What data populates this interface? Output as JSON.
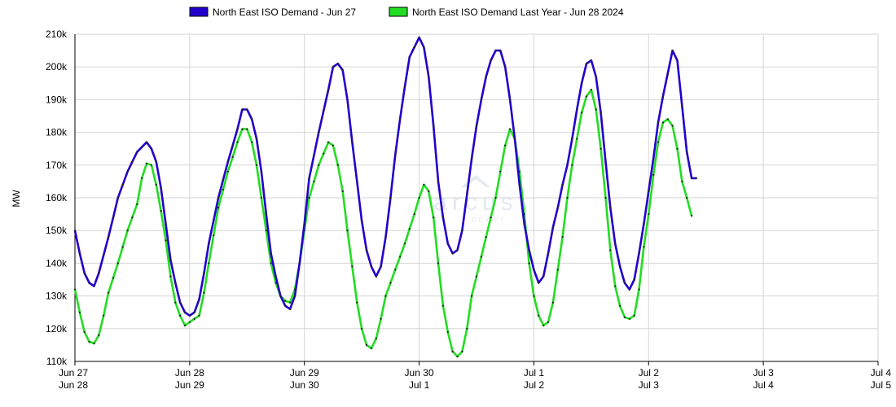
{
  "chart_data": {
    "type": "line",
    "ylabel": "MW",
    "ylim": [
      110000,
      210000
    ],
    "yticks": [
      {
        "value": 110000,
        "label": "110k"
      },
      {
        "value": 120000,
        "label": "120k"
      },
      {
        "value": 130000,
        "label": "130k"
      },
      {
        "value": 140000,
        "label": "140k"
      },
      {
        "value": 150000,
        "label": "150k"
      },
      {
        "value": 160000,
        "label": "160k"
      },
      {
        "value": 170000,
        "label": "170k"
      },
      {
        "value": 180000,
        "label": "180k"
      },
      {
        "value": 190000,
        "label": "190k"
      },
      {
        "value": 200000,
        "label": "200k"
      },
      {
        "value": 210000,
        "label": "210k"
      }
    ],
    "xlim": [
      0,
      168
    ],
    "xticks": [
      {
        "x": 0,
        "line1": "Jun 27",
        "line2": "Jun 28"
      },
      {
        "x": 24,
        "line1": "Jun 28",
        "line2": "Jun 29"
      },
      {
        "x": 48,
        "line1": "Jun 29",
        "line2": "Jun 30"
      },
      {
        "x": 72,
        "line1": "Jun 30",
        "line2": "Jul 1"
      },
      {
        "x": 96,
        "line1": "Jul 1",
        "line2": "Jul 2"
      },
      {
        "x": 120,
        "line1": "Jul 2",
        "line2": "Jul 3"
      },
      {
        "x": 144,
        "line1": "Jul 3",
        "line2": "Jul 4"
      },
      {
        "x": 168,
        "line1": "Jul 4",
        "line2": "Jul 5"
      }
    ],
    "grid": true,
    "legend_position": "top",
    "series": [
      {
        "name": "North East ISO Demand - Jun 27",
        "color": "#2200cc",
        "anchors": [
          [
            0,
            150000
          ],
          [
            1,
            143000
          ],
          [
            2,
            137000
          ],
          [
            3,
            134000
          ],
          [
            4,
            133000
          ],
          [
            5,
            137000
          ],
          [
            7,
            148000
          ],
          [
            9,
            160000
          ],
          [
            11,
            168000
          ],
          [
            13,
            174000
          ],
          [
            15,
            177000
          ],
          [
            16,
            175000
          ],
          [
            17,
            171000
          ],
          [
            18,
            163000
          ],
          [
            19,
            152000
          ],
          [
            20,
            141000
          ],
          [
            21,
            134000
          ],
          [
            22,
            128000
          ],
          [
            23,
            125000
          ],
          [
            24,
            124000
          ],
          [
            25,
            125000
          ],
          [
            26,
            129000
          ],
          [
            27,
            137000
          ],
          [
            28,
            146000
          ],
          [
            30,
            160000
          ],
          [
            32,
            171000
          ],
          [
            34,
            181000
          ],
          [
            35,
            187000
          ],
          [
            36,
            187000
          ],
          [
            37,
            184000
          ],
          [
            38,
            178000
          ],
          [
            39,
            168000
          ],
          [
            40,
            155000
          ],
          [
            41,
            143000
          ],
          [
            42,
            136000
          ],
          [
            43,
            130000
          ],
          [
            44,
            127000
          ],
          [
            45,
            126000
          ],
          [
            46,
            130000
          ],
          [
            47,
            140000
          ],
          [
            48,
            152000
          ],
          [
            49,
            166000
          ],
          [
            51,
            180000
          ],
          [
            53,
            193000
          ],
          [
            54,
            200000
          ],
          [
            55,
            201000
          ],
          [
            56,
            199000
          ],
          [
            57,
            190000
          ],
          [
            58,
            177000
          ],
          [
            59,
            165000
          ],
          [
            60,
            153000
          ],
          [
            61,
            144000
          ],
          [
            62,
            139000
          ],
          [
            63,
            136000
          ],
          [
            64,
            139000
          ],
          [
            65,
            148000
          ],
          [
            66,
            160000
          ],
          [
            67,
            173000
          ],
          [
            68,
            184000
          ],
          [
            69,
            194000
          ],
          [
            70,
            203000
          ],
          [
            71,
            206000
          ],
          [
            72,
            209000
          ],
          [
            73,
            206000
          ],
          [
            74,
            197000
          ],
          [
            75,
            182000
          ],
          [
            76,
            165000
          ],
          [
            77,
            154000
          ],
          [
            78,
            146000
          ],
          [
            79,
            143000
          ],
          [
            80,
            144000
          ],
          [
            81,
            150000
          ],
          [
            82,
            161000
          ],
          [
            83,
            172000
          ],
          [
            84,
            182000
          ],
          [
            85,
            190000
          ],
          [
            86,
            197000
          ],
          [
            87,
            202000
          ],
          [
            88,
            205000
          ],
          [
            89,
            205000
          ],
          [
            90,
            200000
          ],
          [
            91,
            190000
          ],
          [
            92,
            178000
          ],
          [
            93,
            164000
          ],
          [
            94,
            152000
          ],
          [
            95,
            144000
          ],
          [
            96,
            138000
          ],
          [
            97,
            134000
          ],
          [
            98,
            136000
          ],
          [
            99,
            143000
          ],
          [
            100,
            151000
          ],
          [
            101,
            157000
          ],
          [
            102,
            164000
          ],
          [
            103,
            170000
          ],
          [
            104,
            178000
          ],
          [
            105,
            187000
          ],
          [
            106,
            195000
          ],
          [
            107,
            201000
          ],
          [
            108,
            202000
          ],
          [
            109,
            197000
          ],
          [
            110,
            186000
          ],
          [
            111,
            171000
          ],
          [
            112,
            157000
          ],
          [
            113,
            146000
          ],
          [
            114,
            139000
          ],
          [
            115,
            134000
          ],
          [
            116,
            132000
          ],
          [
            117,
            135000
          ],
          [
            118,
            143000
          ],
          [
            119,
            152000
          ],
          [
            120,
            162000
          ],
          [
            121,
            172000
          ],
          [
            122,
            183000
          ],
          [
            123,
            191000
          ],
          [
            124,
            198000
          ],
          [
            125,
            205000
          ],
          [
            126,
            202000
          ],
          [
            127,
            188000
          ],
          [
            128,
            174000
          ],
          [
            129,
            166000
          ],
          [
            130,
            166000
          ]
        ]
      },
      {
        "name": "North East ISO Demand Last Year - Jun 28 2024",
        "color": "#22dd22",
        "anchors": [
          [
            0,
            132000
          ],
          [
            1,
            125000
          ],
          [
            2,
            119000
          ],
          [
            3,
            116000
          ],
          [
            4,
            115500
          ],
          [
            5,
            118000
          ],
          [
            6,
            124000
          ],
          [
            7,
            131000
          ],
          [
            9,
            140000
          ],
          [
            11,
            150000
          ],
          [
            13,
            158000
          ],
          [
            14,
            166000
          ],
          [
            15,
            170500
          ],
          [
            16,
            170000
          ],
          [
            17,
            164000
          ],
          [
            18,
            156000
          ],
          [
            19,
            147000
          ],
          [
            20,
            136000
          ],
          [
            21,
            128000
          ],
          [
            22,
            124000
          ],
          [
            23,
            121000
          ],
          [
            24,
            122000
          ],
          [
            25,
            123000
          ],
          [
            26,
            124000
          ],
          [
            27,
            131000
          ],
          [
            28,
            140000
          ],
          [
            30,
            157000
          ],
          [
            32,
            168000
          ],
          [
            34,
            177000
          ],
          [
            35,
            181000
          ],
          [
            36,
            181000
          ],
          [
            37,
            177000
          ],
          [
            38,
            170000
          ],
          [
            39,
            160000
          ],
          [
            40,
            150000
          ],
          [
            41,
            140000
          ],
          [
            42,
            134000
          ],
          [
            43,
            130000
          ],
          [
            44,
            128500
          ],
          [
            45,
            128000
          ],
          [
            46,
            132000
          ],
          [
            47,
            140000
          ],
          [
            48,
            150000
          ],
          [
            49,
            160000
          ],
          [
            51,
            170000
          ],
          [
            53,
            177000
          ],
          [
            54,
            176000
          ],
          [
            55,
            170000
          ],
          [
            56,
            162000
          ],
          [
            57,
            150000
          ],
          [
            58,
            139000
          ],
          [
            59,
            128000
          ],
          [
            60,
            120000
          ],
          [
            61,
            115000
          ],
          [
            62,
            114000
          ],
          [
            63,
            117000
          ],
          [
            64,
            123000
          ],
          [
            65,
            130000
          ],
          [
            67,
            138000
          ],
          [
            69,
            146000
          ],
          [
            71,
            155000
          ],
          [
            72,
            160000
          ],
          [
            73,
            164000
          ],
          [
            74,
            162000
          ],
          [
            75,
            154000
          ],
          [
            76,
            140000
          ],
          [
            77,
            127000
          ],
          [
            78,
            119000
          ],
          [
            79,
            113000
          ],
          [
            80,
            111500
          ],
          [
            81,
            113000
          ],
          [
            82,
            120000
          ],
          [
            83,
            130000
          ],
          [
            84,
            136000
          ],
          [
            86,
            148000
          ],
          [
            88,
            160000
          ],
          [
            89,
            168000
          ],
          [
            90,
            176000
          ],
          [
            91,
            181000
          ],
          [
            92,
            178000
          ],
          [
            93,
            168000
          ],
          [
            94,
            155000
          ],
          [
            95,
            140000
          ],
          [
            96,
            130000
          ],
          [
            97,
            124000
          ],
          [
            98,
            121000
          ],
          [
            99,
            122000
          ],
          [
            100,
            128000
          ],
          [
            101,
            138000
          ],
          [
            102,
            148000
          ],
          [
            103,
            160000
          ],
          [
            104,
            170000
          ],
          [
            105,
            178000
          ],
          [
            106,
            186000
          ],
          [
            107,
            191000
          ],
          [
            108,
            193000
          ],
          [
            109,
            187000
          ],
          [
            110,
            175000
          ],
          [
            111,
            160000
          ],
          [
            112,
            144000
          ],
          [
            113,
            133000
          ],
          [
            114,
            127000
          ],
          [
            115,
            123500
          ],
          [
            116,
            123000
          ],
          [
            117,
            124000
          ],
          [
            118,
            132000
          ],
          [
            119,
            145000
          ],
          [
            120,
            155000
          ],
          [
            121,
            167000
          ],
          [
            122,
            177000
          ],
          [
            123,
            183000
          ],
          [
            124,
            184000
          ],
          [
            125,
            182000
          ],
          [
            126,
            175000
          ],
          [
            127,
            165000
          ],
          [
            128,
            160000
          ],
          [
            129,
            154500
          ]
        ]
      }
    ],
    "watermark": {
      "main": "arcus",
      "sub": "power"
    }
  }
}
